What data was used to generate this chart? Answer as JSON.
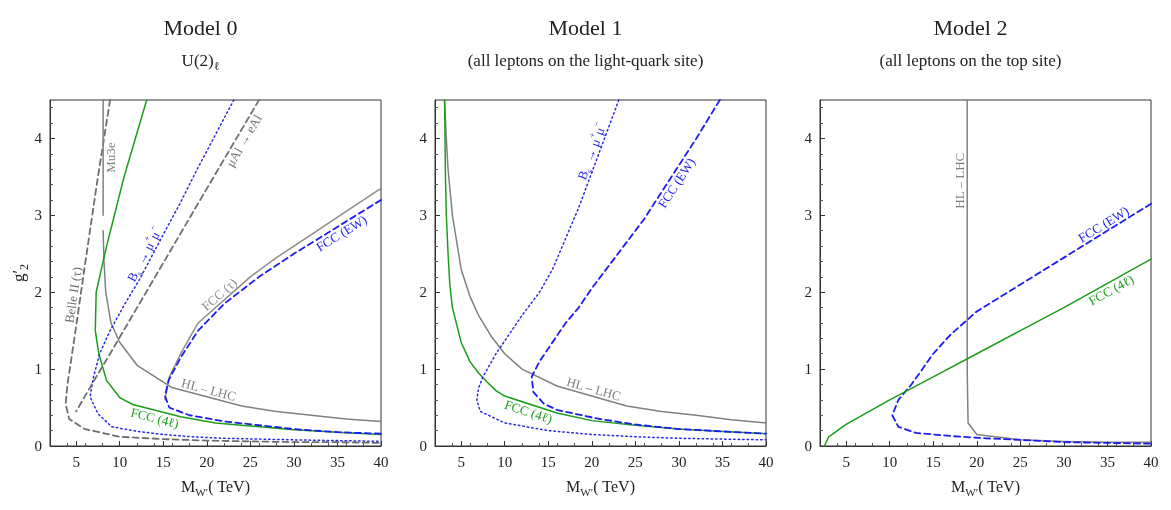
{
  "chart_data": [
    {
      "type": "line",
      "title": "Model 0",
      "subtitle": "U(2)$_{ℓ}$",
      "xlabel": "M$_{W′}$( TeV)",
      "ylabel": "g′$_{2}$",
      "xlim": [
        2,
        40
      ],
      "ylim": [
        0,
        4.5
      ],
      "xticks": [
        5,
        10,
        15,
        20,
        25,
        30,
        35,
        40
      ],
      "yticks": [
        0,
        1,
        2,
        3,
        4
      ],
      "grid": false,
      "legend": false,
      "marker": "none",
      "series": [
        {
          "name": "Belle II (τ)",
          "color": "#6e6e6e",
          "line_style": "dashed",
          "x": [
            8.9,
            8.2,
            7.5,
            6.2,
            4.8,
            4,
            3.8,
            4.2,
            6,
            10,
            15,
            20,
            25,
            30,
            35,
            40
          ],
          "values": [
            4.5,
            4.0,
            3.5,
            2.5,
            1.4,
            0.8,
            0.55,
            0.35,
            0.22,
            0.12,
            0.09,
            0.07,
            0.06,
            0.05,
            0.05,
            0.04
          ]
        },
        {
          "name": "Mu3e",
          "color": "#808080",
          "line_style": "solid",
          "x": [
            8.1,
            8.1
          ],
          "values": [
            4.5,
            3.0
          ]
        },
        {
          "name": "HL – LHC",
          "color": "#808080",
          "line_style": "solid",
          "x": [
            8.1,
            8.2,
            8.4,
            9,
            10,
            12,
            16,
            24,
            28,
            32,
            36,
            40
          ],
          "values": [
            2.8,
            2.4,
            2.0,
            1.6,
            1.35,
            1.05,
            0.76,
            0.52,
            0.45,
            0.4,
            0.35,
            0.32
          ]
        },
        {
          "name": "FCC (4ℓ)",
          "color": "#1a9e1a",
          "line_style": "solid",
          "x": [
            13.1,
            11.8,
            10.5,
            9.5,
            8.5,
            7.9,
            7.3,
            7.2,
            7.6,
            8.5,
            10,
            11.5,
            17,
            21,
            25,
            30,
            35,
            40
          ],
          "values": [
            4.5,
            4.0,
            3.5,
            3.05,
            2.6,
            2.3,
            2.0,
            1.5,
            1.2,
            0.85,
            0.63,
            0.54,
            0.38,
            0.3,
            0.26,
            0.21,
            0.18,
            0.15
          ]
        },
        {
          "name": "B$_{s}$ → μ$^{+}$μ$^{−}$",
          "color": "#2a2ae0",
          "line_style": "dotted",
          "x": [
            23.1,
            21,
            18.9,
            16.9,
            15,
            12.2,
            10.6,
            8.9,
            7.7,
            7,
            6.6,
            7.5,
            9.1,
            12,
            15,
            18.3,
            22,
            26,
            30,
            35,
            40
          ],
          "values": [
            4.5,
            4.05,
            3.6,
            3.15,
            2.75,
            2.15,
            1.85,
            1.5,
            1.2,
            0.9,
            0.64,
            0.42,
            0.25,
            0.19,
            0.15,
            0.12,
            0.1,
            0.09,
            0.08,
            0.07,
            0.06
          ]
        },
        {
          "name": "μAl → eAl",
          "color": "#707070",
          "line_style": "dashed",
          "x": [
            26,
            21,
            18,
            15,
            12,
            9,
            7,
            5
          ],
          "values": [
            4.5,
            3.54,
            2.96,
            2.38,
            1.8,
            1.22,
            0.84,
            0.45
          ]
        },
        {
          "name": "FCC (τ)",
          "color": "#8c8c8c",
          "line_style": "solid",
          "x": [
            40,
            36,
            32,
            28,
            25,
            19,
            17,
            15.7,
            15.2
          ],
          "values": [
            3.35,
            3.05,
            2.75,
            2.45,
            2.2,
            1.6,
            1.2,
            0.9,
            0.6
          ]
        },
        {
          "name": "FCC (EW)",
          "color": "#1c1cf0",
          "line_style": "dashed",
          "x": [
            40,
            30,
            26,
            22,
            19,
            17,
            15.6,
            15.2,
            15.7,
            18,
            22,
            26,
            30,
            35,
            40
          ],
          "values": [
            3.2,
            2.5,
            2.2,
            1.85,
            1.5,
            1.15,
            0.85,
            0.65,
            0.5,
            0.4,
            0.32,
            0.27,
            0.22,
            0.18,
            0.16
          ]
        }
      ]
    },
    {
      "type": "line",
      "title": "Model 1",
      "subtitle": "(all leptons on the light-quark site)",
      "xlabel": "M$_{W′}$( TeV)",
      "xlim": [
        2,
        40
      ],
      "ylim": [
        0,
        4.5
      ],
      "xticks": [
        5,
        10,
        15,
        20,
        25,
        30,
        35,
        40
      ],
      "yticks": [
        0,
        1,
        2,
        3,
        4
      ],
      "grid": false,
      "legend": false,
      "marker": "none",
      "series": [
        {
          "name": "HL – LHC",
          "color": "#808080",
          "line_style": "solid",
          "x": [
            3.1,
            3.3,
            3.5,
            4,
            5,
            6,
            7,
            8.5,
            10,
            12,
            16,
            24,
            28,
            32,
            36,
            40
          ],
          "values": [
            4.5,
            4.0,
            3.6,
            3.0,
            2.3,
            1.95,
            1.7,
            1.42,
            1.2,
            1.0,
            0.78,
            0.52,
            0.45,
            0.4,
            0.34,
            0.3
          ]
        },
        {
          "name": "FCC (4ℓ)",
          "color": "#1a9e1a",
          "line_style": "solid",
          "x": [
            3.1,
            3.15,
            3.2,
            3.3,
            3.5,
            3.7,
            4,
            5,
            6,
            7,
            8,
            9,
            10,
            16,
            20,
            25,
            30,
            35,
            40
          ],
          "values": [
            4.5,
            4.0,
            3.5,
            3.0,
            2.5,
            2.1,
            1.8,
            1.35,
            1.1,
            0.95,
            0.83,
            0.72,
            0.65,
            0.43,
            0.33,
            0.27,
            0.22,
            0.19,
            0.16
          ]
        },
        {
          "name": "B$_{s}$ → μ$^{+}$μ$^{−}$",
          "color": "#2a2ae0",
          "line_style": "dotted",
          "x": [
            23.1,
            18.5,
            17,
            15.5,
            14,
            12,
            10.5,
            9,
            8,
            7.5,
            7,
            6.8,
            7.2,
            10,
            15,
            20,
            25,
            30,
            35,
            40
          ],
          "values": [
            4.5,
            3.1,
            2.7,
            2.3,
            2.0,
            1.7,
            1.45,
            1.2,
            1.0,
            0.9,
            0.75,
            0.6,
            0.45,
            0.3,
            0.2,
            0.15,
            0.12,
            0.1,
            0.09,
            0.08
          ]
        },
        {
          "name": "FCC (EW)",
          "color": "#1c1cf0",
          "line_style": "dashed",
          "x": [
            34.7,
            32,
            26,
            23,
            20,
            18.5,
            17,
            15.5,
            14,
            13.1,
            13.3,
            14.5,
            16,
            18,
            21,
            25,
            30,
            35,
            40
          ],
          "values": [
            4.5,
            4.0,
            2.95,
            2.5,
            2.05,
            1.8,
            1.6,
            1.35,
            1.1,
            0.9,
            0.7,
            0.55,
            0.47,
            0.42,
            0.35,
            0.28,
            0.22,
            0.19,
            0.16
          ]
        }
      ]
    },
    {
      "type": "line",
      "title": "Model 2",
      "subtitle": "(all leptons on the top site)",
      "xlabel": "M$_{W′}$( TeV)",
      "xlim": [
        2,
        40
      ],
      "ylim": [
        0,
        4.5
      ],
      "xticks": [
        5,
        10,
        15,
        20,
        25,
        30,
        35,
        40
      ],
      "yticks": [
        0,
        1,
        2,
        3,
        4
      ],
      "grid": false,
      "legend": false,
      "marker": "none",
      "series": [
        {
          "name": "HL – LHC",
          "color": "#808080",
          "line_style": "solid",
          "x": [
            18.9,
            18.9,
            18.9,
            18.9,
            19,
            20,
            25,
            30,
            35,
            40
          ],
          "values": [
            4.5,
            2.4,
            1.5,
            1,
            0.3,
            0.15,
            0.08,
            0.06,
            0.05,
            0.05
          ]
        },
        {
          "name": "FCC (EW)",
          "color": "#1c1cf0",
          "line_style": "dashed",
          "x": [
            40,
            30,
            25,
            20,
            17,
            15,
            12.5,
            11,
            10.3,
            11,
            13,
            17,
            21,
            25,
            30,
            35,
            40
          ],
          "values": [
            3.15,
            2.45,
            2.1,
            1.75,
            1.45,
            1.2,
            0.8,
            0.6,
            0.4,
            0.25,
            0.17,
            0.13,
            0.1,
            0.08,
            0.05,
            0.04,
            0.03
          ]
        },
        {
          "name": "FCC (4ℓ)",
          "color": "#1a9e1a",
          "line_style": "solid",
          "x": [
            2.5,
            3,
            5,
            10,
            15,
            20,
            25,
            30,
            40
          ],
          "values": [
            0,
            0.12,
            0.28,
            0.6,
            0.9,
            1.2,
            1.5,
            1.8,
            2.43
          ]
        }
      ]
    }
  ]
}
